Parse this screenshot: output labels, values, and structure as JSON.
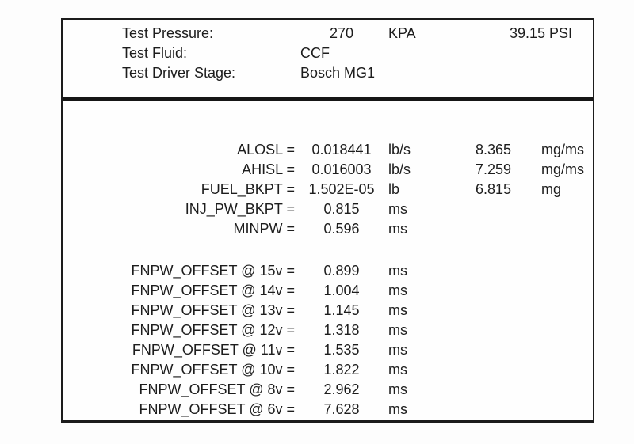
{
  "header": {
    "rows": [
      {
        "label": "Test Pressure:",
        "value": "270",
        "unit": "KPA",
        "extra": "39.15 PSI"
      },
      {
        "label": "Test Fluid:",
        "value": "CCF",
        "unit": "",
        "extra": ""
      },
      {
        "label": "Test Driver Stage:",
        "value": "Bosch MG1",
        "unit": "",
        "extra": ""
      }
    ]
  },
  "parameters": {
    "rows": [
      {
        "label": "ALOSL =",
        "value": "0.018441",
        "unit": "lb/s",
        "value2": "8.365",
        "unit2": "mg/ms"
      },
      {
        "label": "AHISL =",
        "value": "0.016003",
        "unit": "lb/s",
        "value2": "7.259",
        "unit2": "mg/ms"
      },
      {
        "label": "FUEL_BKPT =",
        "value": "1.502E-05",
        "unit": "lb",
        "value2": "6.815",
        "unit2": "mg"
      },
      {
        "label": "INJ_PW_BKPT =",
        "value": "0.815",
        "unit": "ms",
        "value2": "",
        "unit2": ""
      },
      {
        "label": "MINPW =",
        "value": "0.596",
        "unit": "ms",
        "value2": "",
        "unit2": ""
      }
    ]
  },
  "offsets": {
    "rows": [
      {
        "label": "FNPW_OFFSET @ 15v =",
        "value": "0.899",
        "unit": "ms"
      },
      {
        "label": "FNPW_OFFSET @ 14v =",
        "value": "1.004",
        "unit": "ms"
      },
      {
        "label": "FNPW_OFFSET @ 13v =",
        "value": "1.145",
        "unit": "ms"
      },
      {
        "label": "FNPW_OFFSET @ 12v =",
        "value": "1.318",
        "unit": "ms"
      },
      {
        "label": "FNPW_OFFSET @ 11v =",
        "value": "1.535",
        "unit": "ms"
      },
      {
        "label": "FNPW_OFFSET @ 10v =",
        "value": "1.822",
        "unit": "ms"
      },
      {
        "label": "FNPW_OFFSET @ 8v =",
        "value": "2.962",
        "unit": "ms"
      },
      {
        "label": "FNPW_OFFSET @ 6v =",
        "value": "7.628",
        "unit": "ms"
      }
    ]
  },
  "colors": {
    "border": "#1c1c1c",
    "divider": "#161616",
    "text": "#1d1d1d",
    "background": "#fefefe"
  }
}
